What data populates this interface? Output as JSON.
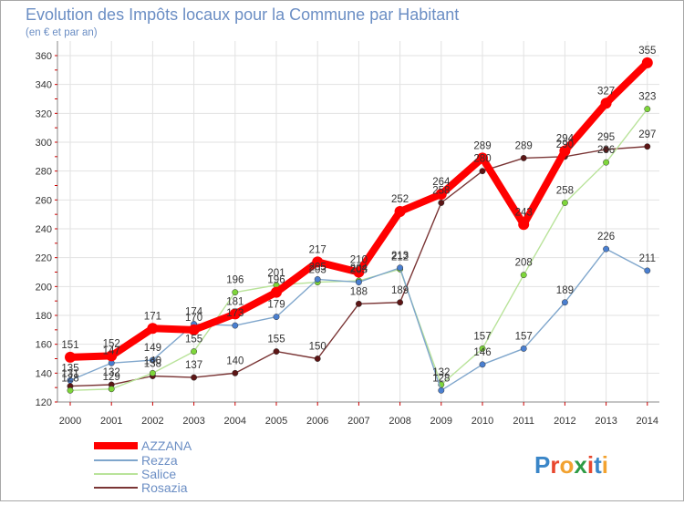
{
  "chart_data": {
    "type": "line",
    "title": "Evolution des Impôts locaux pour la Commune par Habitant",
    "subtitle": "(en € et par an)",
    "xlabel": "",
    "ylabel": "",
    "categories": [
      "2000",
      "2001",
      "2002",
      "2003",
      "2004",
      "2005",
      "2006",
      "2007",
      "2008",
      "2009",
      "2010",
      "2011",
      "2012",
      "2013",
      "2014"
    ],
    "ylim": [
      120,
      360
    ],
    "yticks": [
      120,
      140,
      160,
      180,
      200,
      220,
      240,
      260,
      280,
      300,
      320,
      340,
      360
    ],
    "grid": true,
    "legend_position": "bottom-left",
    "series": [
      {
        "name": "AZZANA",
        "color": "#ff0000",
        "marker": "#ff0000",
        "values": [
          151,
          152,
          171,
          170,
          181,
          196,
          217,
          210,
          252,
          264,
          289,
          243,
          294,
          327,
          355
        ],
        "labels": [
          "151",
          "152",
          "171",
          "170",
          "181",
          "196",
          "217",
          "210",
          "252",
          "264",
          "289",
          "243",
          "294",
          "327",
          "355"
        ]
      },
      {
        "name": "Rezza",
        "color": "#7fa6cc",
        "marker": "#4a7fd0",
        "values": [
          135,
          147,
          149,
          174,
          173,
          179,
          205,
          203,
          213,
          128,
          146,
          157,
          189,
          226,
          211
        ],
        "labels": [
          "135",
          "147",
          "149",
          "174",
          "173",
          "179",
          "205",
          "203",
          "213",
          "128",
          "146",
          "157",
          "189",
          "226",
          "211"
        ]
      },
      {
        "name": "Salice",
        "color": "#b9e39a",
        "marker": "#7ed63a",
        "values": [
          128,
          129,
          140,
          155,
          196,
          201,
          203,
          204,
          212,
          132,
          157,
          208,
          258,
          286,
          323
        ],
        "labels": [
          "128",
          "129",
          "140",
          "155",
          "196",
          "201",
          "203",
          "204",
          "212",
          "132",
          "157",
          "208",
          "258",
          "286",
          "323"
        ]
      },
      {
        "name": "Rosazia",
        "color": "#7a3535",
        "marker": "#5c1515",
        "values": [
          131,
          132,
          138,
          137,
          140,
          155,
          150,
          188,
          189,
          258,
          280,
          289,
          290,
          295,
          297
        ],
        "labels": [
          "131",
          "132",
          "138",
          "137",
          "140",
          "155",
          "150",
          "188",
          "189",
          "258",
          "280",
          "289",
          "290",
          "295",
          "297"
        ]
      }
    ]
  },
  "logo": {
    "text": "Proxiti"
  }
}
